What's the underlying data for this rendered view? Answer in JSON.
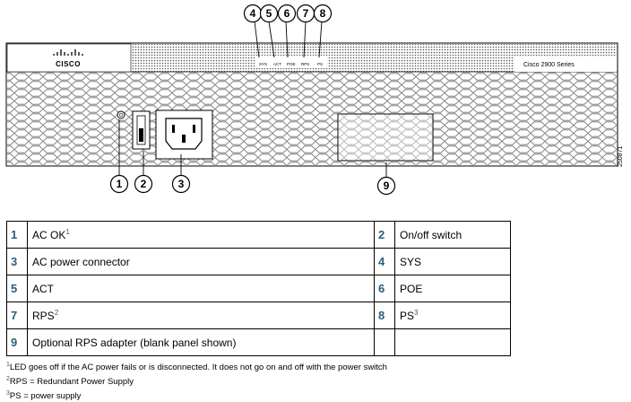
{
  "brand": {
    "logo_text": "CISCO",
    "model": "Cisco 2900 Series"
  },
  "panel_leds": [
    "SYS",
    "ACT",
    "POE",
    "RPS",
    "PS"
  ],
  "callouts": [
    "1",
    "2",
    "3",
    "4",
    "5",
    "6",
    "7",
    "8",
    "9"
  ],
  "side_id": "250871",
  "legend": [
    {
      "n1": "1",
      "d1": "AC OK",
      "s1": "1",
      "n2": "2",
      "d2": "On/off switch",
      "s2": ""
    },
    {
      "n1": "3",
      "d1": "AC power connector",
      "s1": "",
      "n2": "4",
      "d2": "SYS",
      "s2": ""
    },
    {
      "n1": "5",
      "d1": "ACT",
      "s1": "",
      "n2": "6",
      "d2": "POE",
      "s2": ""
    },
    {
      "n1": "7",
      "d1": "RPS",
      "s1": "2",
      "n2": "8",
      "d2": "PS",
      "s2": "3"
    },
    {
      "n1": "9",
      "d1": "Optional RPS adapter (blank panel shown)",
      "s1": "",
      "n2": "",
      "d2": "",
      "s2": ""
    }
  ],
  "notes": [
    {
      "mark": "1",
      "text": "LED goes off if the AC power fails or is disconnected. It does not go on and off with the power switch"
    },
    {
      "mark": "2",
      "text": "RPS = Redundant Power Supply"
    },
    {
      "mark": "3",
      "text": "PS = power supply"
    }
  ]
}
